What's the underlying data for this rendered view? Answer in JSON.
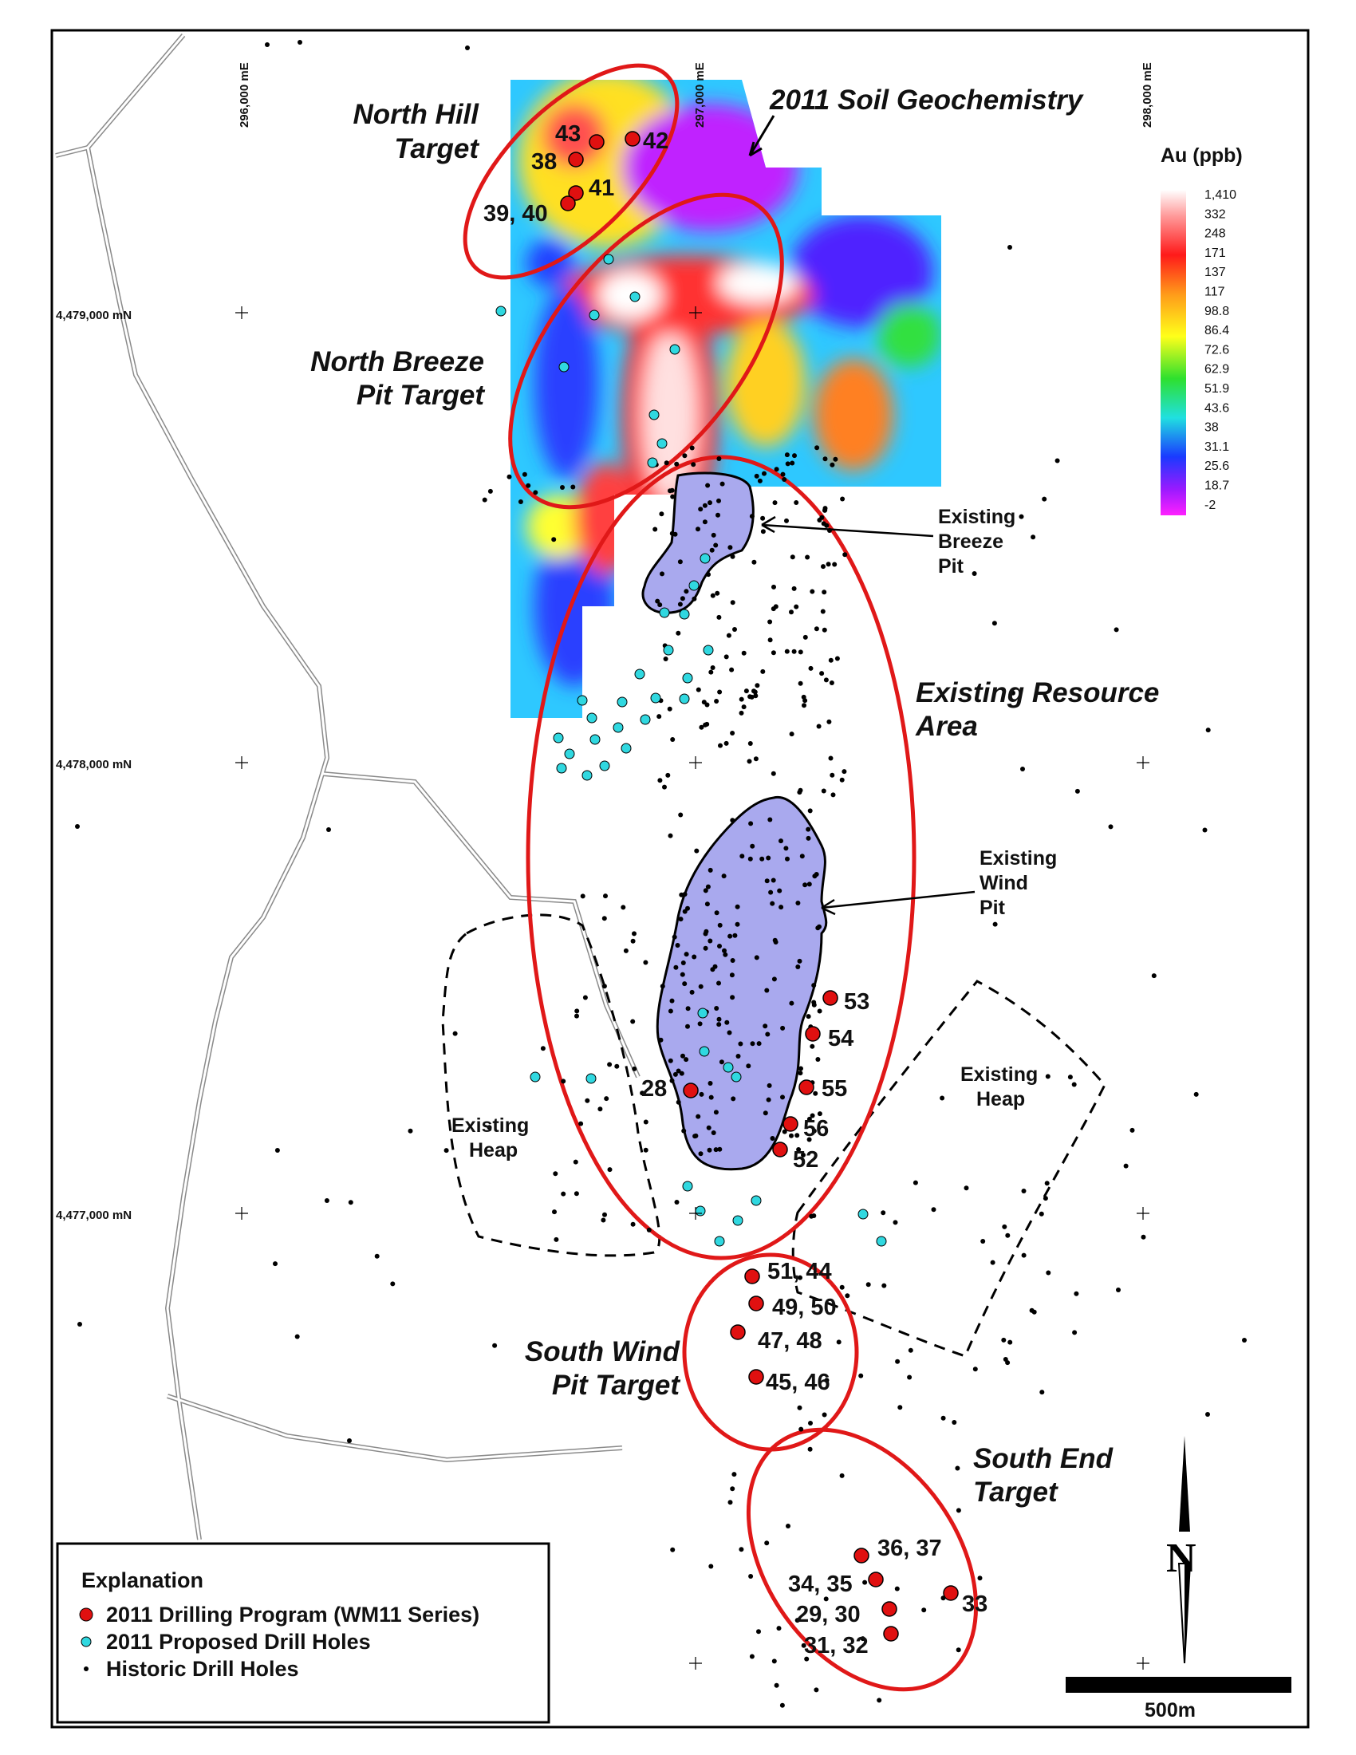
{
  "labels": {
    "north_hill": [
      "North Hill",
      "Target"
    ],
    "soil_geochem": "2011 Soil Geochemistry",
    "north_breeze": [
      "North Breeze",
      "Pit Target"
    ],
    "existing_resource": [
      "Existing Resource",
      "Area"
    ],
    "south_wind": [
      "South Wind",
      "Pit Target"
    ],
    "south_end": [
      "South End",
      "Target"
    ],
    "breeze_pit": [
      "Existing",
      "Breeze",
      "Pit"
    ],
    "wind_pit": [
      "Existing",
      "Wind",
      "Pit"
    ],
    "heap_west": [
      "Existing",
      "Heap"
    ],
    "heap_east": [
      "Existing",
      "Heap"
    ]
  },
  "coords": {
    "easting_296": "296,000 mE",
    "easting_297": "297,000 mE",
    "easting_298": "298,000 mE",
    "northing_4479": "4,479,000 mN",
    "northing_4478": "4,478,000 mN",
    "northing_4477": "4,477,000 mN"
  },
  "legend": {
    "title": "Au (ppb)",
    "values": [
      "1,410",
      "332",
      "248",
      "171",
      "137",
      "117",
      "98.8",
      "86.4",
      "72.6",
      "62.9",
      "51.9",
      "43.6",
      "38",
      "31.1",
      "25.6",
      "18.7",
      "-2"
    ]
  },
  "explanation": {
    "title": "Explanation",
    "items": [
      "2011 Drilling Program (WM11 Series)",
      "2011 Proposed Drill Holes",
      "Historic Drill Holes"
    ]
  },
  "drill_labels": {
    "h43": "43",
    "h42": "42",
    "h38": "38",
    "h41": "41",
    "h39_40": "39, 40",
    "h53": "53",
    "h54": "54",
    "h55": "55",
    "h56": "56",
    "h52": "52",
    "h28": "28",
    "h51_44": "51, 44",
    "h49_50": "49, 50",
    "h47_48": "47, 48",
    "h45_46": "45, 46",
    "h36_37": "36, 37",
    "h34_35": "34, 35",
    "h29_30": "29, 30",
    "h31_32": "31, 32",
    "h33": "33"
  },
  "north_letter": "N",
  "scale_label": "500m",
  "colors": {
    "target_ellipse": "#e01818",
    "pit_fill": "#a9a9ee",
    "red_hole": "#e01010",
    "proposed_hole": "#30d8e0",
    "road": "#8a8a8a"
  }
}
